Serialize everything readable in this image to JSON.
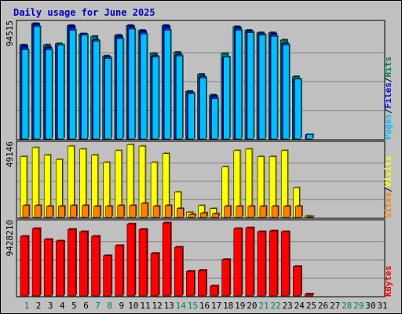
{
  "chart_data": {
    "type": "bar",
    "title": "Daily usage for June 2025",
    "days": [
      "1",
      "2",
      "3",
      "4",
      "5",
      "6",
      "7",
      "8",
      "9",
      "10",
      "11",
      "12",
      "13",
      "14",
      "15",
      "16",
      "17",
      "18",
      "19",
      "20",
      "21",
      "22",
      "23",
      "24",
      "25",
      "26",
      "27",
      "28",
      "29",
      "30",
      "31"
    ],
    "weekend_days": [
      "1",
      "7",
      "8",
      "14",
      "15",
      "21",
      "22",
      "28",
      "29"
    ],
    "colors": {
      "hits": "#00805c",
      "files": "#0000ff",
      "pages": "#00c0ff",
      "visits": "#ffff00",
      "sites": "#ff8000",
      "kbytes": "#ff0000",
      "title": "#0000c0",
      "weekend_tick": "#00805c",
      "weekday_tick": "#000000"
    },
    "panels": [
      {
        "id": "hits-files-pages",
        "max_label": "94515",
        "ymax": 94515,
        "right_labels": [
          "Pages",
          "Files",
          "Hits"
        ],
        "series": [
          {
            "name": "Hits",
            "values": [
              77000,
              94515,
              77000,
              78000,
              93000,
              86000,
              84000,
              68000,
              85000,
              93000,
              89000,
              70000,
              93000,
              71000,
              39000,
              53000,
              36000,
              70000,
              92000,
              89000,
              87000,
              87000,
              81000,
              51000,
              0,
              0,
              0,
              0,
              0,
              0,
              0
            ]
          },
          {
            "name": "Files",
            "values": [
              76000,
              94000,
              75000,
              77000,
              92000,
              86000,
              81000,
              67000,
              84000,
              92000,
              88000,
              68000,
              92000,
              69000,
              38000,
              51000,
              35000,
              67000,
              91000,
              88000,
              86000,
              86000,
              78000,
              49000,
              3500,
              0,
              0,
              0,
              0,
              0,
              0
            ]
          },
          {
            "name": "Pages",
            "values": [
              73000,
              92000,
              73000,
              77000,
              89000,
              85000,
              80000,
              66000,
              82000,
              90000,
              86000,
              67000,
              89000,
              68000,
              37000,
              50000,
              33000,
              67000,
              89000,
              87000,
              85000,
              84000,
              77000,
              49000,
              3500,
              0,
              0,
              0,
              0,
              0,
              0
            ]
          }
        ]
      },
      {
        "id": "visits-sites",
        "max_label": "49146",
        "ymax": 49146,
        "right_labels": [
          "Sites",
          "Visits"
        ],
        "series": [
          {
            "name": "Visits",
            "values": [
              41000,
              47000,
              42000,
              39000,
              48000,
              46000,
              42000,
              37000,
              45000,
              49000,
              48000,
              37000,
              43000,
              17000,
              3500,
              8000,
              6000,
              34000,
              45000,
              46000,
              41000,
              41000,
              45000,
              20000,
              1000,
              0,
              0,
              0,
              0,
              0,
              0
            ]
          },
          {
            "name": "Sites",
            "values": [
              8000,
              8000,
              7500,
              7500,
              8000,
              8000,
              7500,
              7500,
              8000,
              8000,
              9500,
              7500,
              8000,
              6000,
              2000,
              3000,
              2500,
              7500,
              7500,
              7500,
              7500,
              7500,
              7500,
              7500,
              500,
              0,
              0,
              0,
              0,
              0,
              0
            ]
          }
        ]
      },
      {
        "id": "kbytes",
        "max_label": "9428210",
        "ymax": 9428210,
        "right_labels": [
          "KBytes"
        ],
        "series": [
          {
            "name": "KBytes",
            "values": [
              7700000,
              8700000,
              7300000,
              7100000,
              8600000,
              8300000,
              7700000,
              5200000,
              6500000,
              9300000,
              8600000,
              5500000,
              9428210,
              6300000,
              3200000,
              3300000,
              1300000,
              4700000,
              8700000,
              8800000,
              8300000,
              8400000,
              8300000,
              3800000,
              250000,
              0,
              0,
              0,
              0,
              0,
              0
            ]
          }
        ]
      }
    ]
  }
}
